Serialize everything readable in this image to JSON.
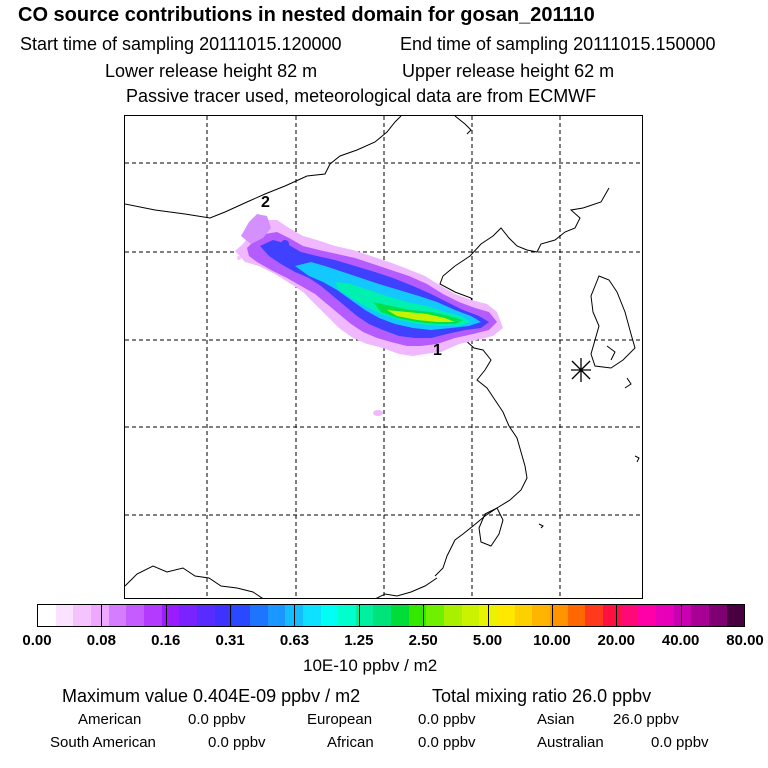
{
  "header": {
    "title": "CO  source contributions in nested domain for gosan_201110",
    "start_time": "Start time of sampling 20111015.120000",
    "end_time": "End time of sampling 20111015.150000",
    "lower_release": "Lower release height   82 m",
    "upper_release": "Upper release height   62 m",
    "tracer_note": "Passive tracer used, meteorological data are from ECMWF"
  },
  "map": {
    "source_labels": [
      "1",
      "2"
    ]
  },
  "colorbar": {
    "colors": [
      "#ffffff",
      "#fbe2ff",
      "#f5c4ff",
      "#efa8ff",
      "#d67cff",
      "#c45cff",
      "#b43aff",
      "#9b1dff",
      "#7a22ff",
      "#5a2bff",
      "#3e32ff",
      "#2a48ff",
      "#1f74ff",
      "#1a98ff",
      "#13bdff",
      "#0ee0ff",
      "#00fff2",
      "#00ffcc",
      "#00f0a0",
      "#00e27a",
      "#00dd3b",
      "#35e800",
      "#6ef000",
      "#a8f000",
      "#cbf200",
      "#e9f200",
      "#ffe800",
      "#ffd000",
      "#ffb400",
      "#ff9400",
      "#ff6800",
      "#ff3a1c",
      "#ff1040",
      "#ff0878",
      "#ff00a8",
      "#e800b8",
      "#c800b2",
      "#a80094",
      "#7f0072",
      "#4a0040"
    ],
    "ticks": [
      "0.00",
      "0.08",
      "0.16",
      "0.31",
      "0.63",
      "1.25",
      "2.50",
      "5.00",
      "10.00",
      "20.00",
      "40.00",
      "80.00"
    ],
    "units": "10E-10 ppbv / m2"
  },
  "stats": {
    "maximum": "Maximum value  0.404E-09 ppbv / m2",
    "total": "Total mixing ratio       26.0 ppbv",
    "american_label": "American",
    "american_value": "0.0 ppbv",
    "european_label": "European",
    "european_value": "0.0 ppbv",
    "asian_label": "Asian",
    "asian_value": "26.0 ppbv",
    "south_american_label": "South American",
    "south_american_value": "0.0 ppbv",
    "african_label": "African",
    "african_value": "0.0 ppbv",
    "australian_label": "Australian",
    "australian_value": "0.0 ppbv"
  }
}
